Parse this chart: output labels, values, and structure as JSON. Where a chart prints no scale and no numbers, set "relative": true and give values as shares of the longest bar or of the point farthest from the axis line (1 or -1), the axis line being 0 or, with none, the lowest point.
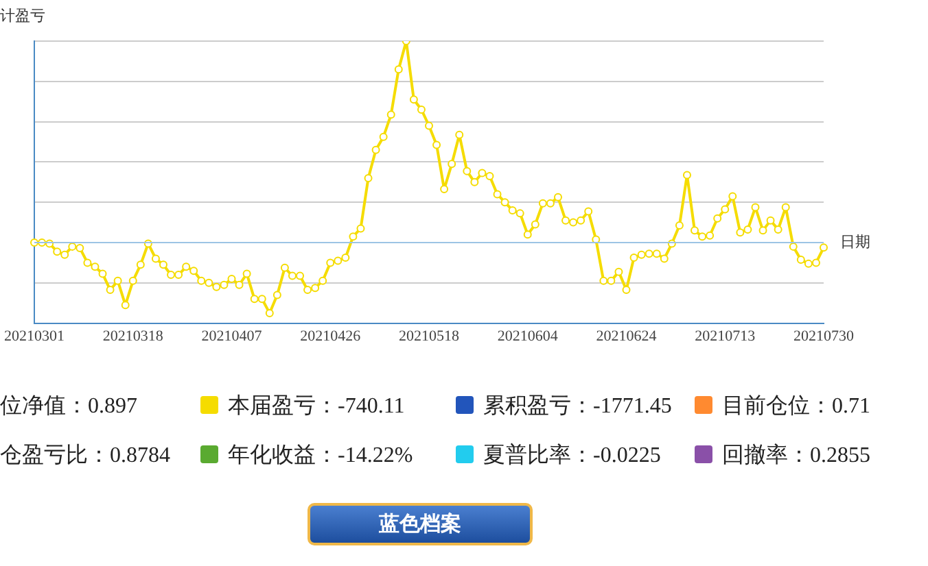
{
  "chart_data": {
    "type": "line",
    "relative": true,
    "ylabel": "计盈亏",
    "xlabel": "日期",
    "categories": [
      "20210301",
      null,
      null,
      null,
      null,
      null,
      null,
      null,
      null,
      null,
      null,
      null,
      null,
      "20210318",
      null,
      null,
      null,
      null,
      null,
      null,
      null,
      null,
      null,
      null,
      null,
      null,
      "20210407",
      null,
      null,
      null,
      null,
      null,
      null,
      null,
      null,
      null,
      null,
      null,
      null,
      "20210426",
      null,
      null,
      null,
      null,
      null,
      null,
      null,
      null,
      null,
      null,
      null,
      null,
      "20210518",
      null,
      null,
      null,
      null,
      null,
      null,
      null,
      null,
      null,
      null,
      null,
      null,
      "20210604",
      null,
      null,
      null,
      null,
      null,
      null,
      null,
      null,
      null,
      null,
      null,
      null,
      "20210624",
      null,
      null,
      null,
      null,
      null,
      null,
      null,
      null,
      null,
      null,
      null,
      null,
      "20210713",
      null,
      null,
      null,
      null,
      null,
      null,
      null,
      null,
      null,
      null,
      null,
      null,
      "20210730"
    ],
    "series": [
      {
        "color": "#f5dc00",
        "values": [
          0,
          0,
          -0.005,
          -0.045,
          -0.06,
          -0.02,
          -0.027,
          -0.1,
          -0.12,
          -0.155,
          -0.235,
          -0.19,
          -0.31,
          -0.19,
          -0.11,
          -0.005,
          -0.08,
          -0.11,
          -0.16,
          -0.16,
          -0.12,
          -0.14,
          -0.19,
          -0.2,
          -0.22,
          -0.21,
          -0.18,
          -0.21,
          -0.155,
          -0.28,
          -0.28,
          -0.35,
          -0.26,
          -0.125,
          -0.165,
          -0.165,
          -0.235,
          -0.225,
          -0.19,
          -0.1,
          -0.09,
          -0.075,
          0.03,
          0.07,
          0.32,
          0.46,
          0.525,
          0.635,
          0.86,
          1,
          0.71,
          0.66,
          0.58,
          0.485,
          0.265,
          0.39,
          0.535,
          0.355,
          0.3,
          0.345,
          0.33,
          0.24,
          0.2,
          0.16,
          0.145,
          0.04,
          0.09,
          0.195,
          0.195,
          0.225,
          0.11,
          0.1,
          0.11,
          0.155,
          0.015,
          -0.19,
          -0.19,
          -0.145,
          -0.235,
          -0.075,
          -0.06,
          -0.055,
          -0.055,
          -0.08,
          -0.005,
          0.085,
          0.335,
          0.06,
          0.03,
          0.035,
          0.12,
          0.165,
          0.23,
          0.05,
          0.065,
          0.175,
          0.06,
          0.11,
          0.065,
          0.175,
          -0.02,
          -0.085,
          -0.105,
          -0.1,
          -0.025
        ]
      }
    ],
    "ref_lines": [
      {
        "axis": "y",
        "value": 0,
        "color": "#9cc4e4"
      }
    ],
    "marker": "circle",
    "grid": "y",
    "legend": false,
    "annotations": [
      "位净值：0.897",
      "本届盈亏：-740.11",
      "累积盈亏：-1771.45",
      "目前仓位：0.71",
      "仓盈亏比：0.8784",
      "年化收益：-14.22%",
      "夏普比率：-0.0225",
      "回撤率：0.2855",
      "蓝色档案"
    ]
  }
}
